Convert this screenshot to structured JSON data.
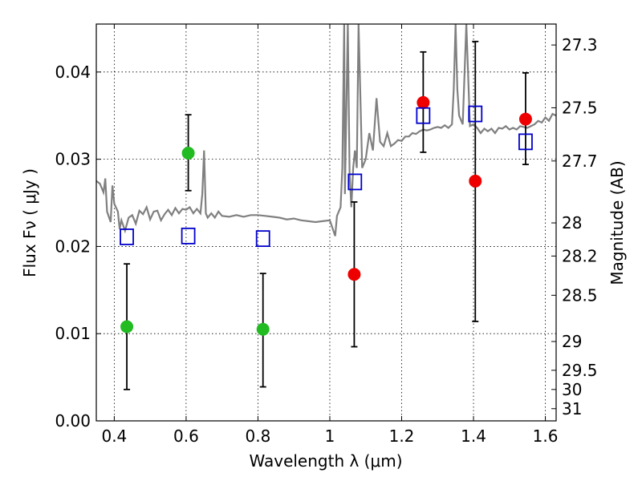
{
  "chart_data": {
    "type": "scatter",
    "xlabel": "Wavelength  λ (μm)",
    "ylabel": "Flux  Fν  ( μJy )",
    "ylabel_right": "Magnitude (AB)",
    "xlim": [
      0.35,
      1.63
    ],
    "ylim": [
      0.0,
      0.0455
    ],
    "grid": true,
    "x_ticks": [
      0.4,
      0.6,
      0.8,
      1.0,
      1.2,
      1.4,
      1.6
    ],
    "x_tick_labels": [
      "0.4",
      "0.6",
      "0.8",
      "1",
      "1.2",
      "1.4",
      "1.6"
    ],
    "y_ticks": [
      0.0,
      0.01,
      0.02,
      0.03,
      0.04
    ],
    "y_tick_labels": [
      "0.00",
      "0.01",
      "0.02",
      "0.03",
      "0.04"
    ],
    "right_ticks": [
      {
        "label": "27.3",
        "flux": 0.0431
      },
      {
        "label": "27.5",
        "flux": 0.0359
      },
      {
        "label": "27.7",
        "flux": 0.0298
      },
      {
        "label": "28",
        "flux": 0.0227
      },
      {
        "label": "28.2",
        "flux": 0.0189
      },
      {
        "label": "28.5",
        "flux": 0.0144
      },
      {
        "label": "29",
        "flux": 0.0091
      },
      {
        "label": "29.5",
        "flux": 0.0058
      },
      {
        "label": "30",
        "flux": 0.0036
      },
      {
        "label": "31",
        "flux": 0.0014
      }
    ],
    "colors": {
      "green": "#22bb22",
      "red": "#ee0000",
      "model_boxes": "#0000cc",
      "spectrum": "#808080"
    },
    "series": [
      {
        "marker": "circle",
        "color": "green",
        "points": [
          {
            "x": 0.435,
            "y": 0.0108,
            "err_low": 0.0036,
            "err_high": 0.018
          },
          {
            "x": 0.606,
            "y": 0.0307,
            "err_low": 0.0264,
            "err_high": 0.0351
          },
          {
            "x": 0.814,
            "y": 0.0105,
            "err_low": 0.0039,
            "err_high": 0.0169
          }
        ]
      },
      {
        "marker": "circle",
        "color": "red",
        "points": [
          {
            "x": 1.068,
            "y": 0.0168,
            "err_low": 0.0085,
            "err_high": 0.0251
          },
          {
            "x": 1.26,
            "y": 0.0365,
            "err_low": 0.0308,
            "err_high": 0.0423
          },
          {
            "x": 1.405,
            "y": 0.0275,
            "err_low": 0.0114,
            "err_high": 0.0435
          },
          {
            "x": 1.545,
            "y": 0.0346,
            "err_low": 0.0294,
            "err_high": 0.0399
          }
        ]
      },
      {
        "marker": "square",
        "color": "model_boxes",
        "points": [
          {
            "x": 0.435,
            "y": 0.0211
          },
          {
            "x": 0.606,
            "y": 0.0212
          },
          {
            "x": 0.814,
            "y": 0.0209
          },
          {
            "x": 1.07,
            "y": 0.0274
          },
          {
            "x": 1.26,
            "y": 0.035
          },
          {
            "x": 1.405,
            "y": 0.0352
          },
          {
            "x": 1.545,
            "y": 0.032
          }
        ]
      }
    ],
    "spectrum": {
      "color": "spectrum",
      "x": [
        0.35,
        0.36,
        0.37,
        0.375,
        0.38,
        0.39,
        0.395,
        0.4,
        0.41,
        0.415,
        0.42,
        0.43,
        0.44,
        0.45,
        0.46,
        0.47,
        0.48,
        0.49,
        0.5,
        0.51,
        0.52,
        0.53,
        0.54,
        0.55,
        0.56,
        0.57,
        0.58,
        0.59,
        0.6,
        0.61,
        0.62,
        0.63,
        0.64,
        0.645,
        0.65,
        0.655,
        0.66,
        0.67,
        0.68,
        0.69,
        0.7,
        0.72,
        0.74,
        0.76,
        0.78,
        0.8,
        0.82,
        0.84,
        0.86,
        0.88,
        0.9,
        0.92,
        0.94,
        0.96,
        0.98,
        1.0,
        1.015,
        1.02,
        1.03,
        1.035,
        1.04,
        1.042,
        1.05,
        1.055,
        1.06,
        1.065,
        1.07,
        1.075,
        1.08,
        1.09,
        1.1,
        1.11,
        1.12,
        1.13,
        1.14,
        1.15,
        1.16,
        1.17,
        1.18,
        1.19,
        1.2,
        1.21,
        1.22,
        1.23,
        1.24,
        1.25,
        1.26,
        1.27,
        1.28,
        1.29,
        1.3,
        1.31,
        1.32,
        1.33,
        1.34,
        1.345,
        1.35,
        1.355,
        1.36,
        1.37,
        1.38,
        1.39,
        1.4,
        1.41,
        1.42,
        1.43,
        1.44,
        1.45,
        1.46,
        1.47,
        1.48,
        1.49,
        1.5,
        1.51,
        1.52,
        1.53,
        1.54,
        1.55,
        1.56,
        1.57,
        1.58,
        1.59,
        1.6,
        1.61,
        1.62,
        1.63
      ],
      "y": [
        0.0275,
        0.0272,
        0.0262,
        0.0278,
        0.024,
        0.0228,
        0.027,
        0.0249,
        0.024,
        0.022,
        0.023,
        0.0218,
        0.0233,
        0.0236,
        0.0226,
        0.0241,
        0.0237,
        0.0245,
        0.0231,
        0.024,
        0.0241,
        0.023,
        0.0237,
        0.0242,
        0.0236,
        0.0244,
        0.0238,
        0.0243,
        0.0242,
        0.0245,
        0.0238,
        0.0243,
        0.0238,
        0.026,
        0.031,
        0.0238,
        0.0233,
        0.0238,
        0.0233,
        0.024,
        0.0235,
        0.0234,
        0.0236,
        0.0234,
        0.0236,
        0.0236,
        0.0235,
        0.0234,
        0.0233,
        0.0231,
        0.0232,
        0.023,
        0.0229,
        0.0228,
        0.0229,
        0.023,
        0.0212,
        0.0235,
        0.0245,
        0.029,
        0.0455,
        0.026,
        0.0455,
        0.0285,
        0.0245,
        0.029,
        0.031,
        0.029,
        0.0455,
        0.029,
        0.03,
        0.033,
        0.031,
        0.037,
        0.032,
        0.0315,
        0.033,
        0.0315,
        0.0318,
        0.0322,
        0.0321,
        0.0326,
        0.0326,
        0.033,
        0.0329,
        0.0332,
        0.0334,
        0.0333,
        0.0334,
        0.0336,
        0.0337,
        0.0336,
        0.0339,
        0.0336,
        0.034,
        0.038,
        0.0455,
        0.038,
        0.035,
        0.034,
        0.0455,
        0.0338,
        0.034,
        0.0336,
        0.033,
        0.0335,
        0.0332,
        0.0335,
        0.033,
        0.0336,
        0.0335,
        0.0338,
        0.0334,
        0.0336,
        0.0334,
        0.0338,
        0.0337,
        0.0336,
        0.0338,
        0.034,
        0.0344,
        0.0342,
        0.0348,
        0.0344,
        0.0352,
        0.035
      ]
    }
  }
}
